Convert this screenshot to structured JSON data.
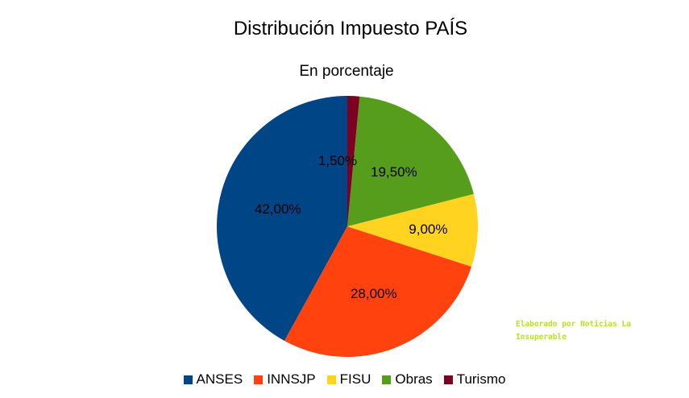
{
  "chart_data": {
    "type": "pie",
    "title": "Distribución Impuesto PAÍS",
    "subtitle": "En porcentaje",
    "categories": [
      "ANSES",
      "INNSJP",
      "FISU",
      "Obras",
      "Turismo"
    ],
    "values": [
      42.0,
      28.0,
      9.0,
      19.5,
      1.5
    ],
    "value_labels": [
      "42,00%",
      "28,00%",
      "9,00%",
      "19,50%",
      "1,50%"
    ],
    "colors": [
      "#004586",
      "#ff420e",
      "#ffd320",
      "#579d1c",
      "#7e0021"
    ],
    "legend_position": "bottom"
  },
  "watermark": {
    "line1": "Elaborado por Noticias La",
    "line2": "Insuperable"
  }
}
